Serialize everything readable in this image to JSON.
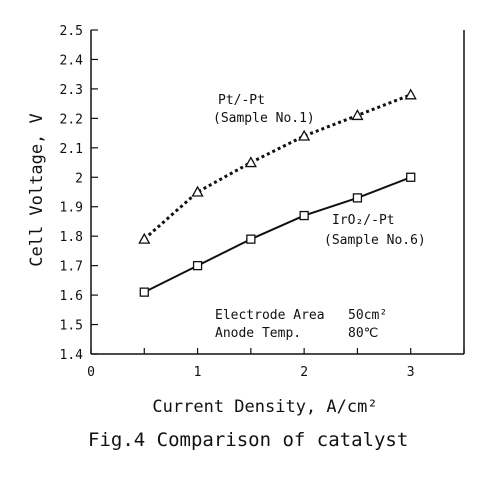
{
  "chart_data": {
    "type": "line",
    "xlabel": "Current Density, A/cm²",
    "ylabel": "Cell Voltage, V",
    "caption": "Fig.4 Comparison of catalyst",
    "xlim": [
      0,
      3.5
    ],
    "ylim": [
      1.4,
      2.5
    ],
    "x_ticks": [
      0,
      1,
      2,
      3
    ],
    "y_ticks": [
      1.4,
      1.5,
      1.6,
      1.7,
      1.8,
      1.9,
      2,
      2.1,
      2.2,
      2.3,
      2.4,
      2.5
    ],
    "series": [
      {
        "name": "Pt/-Pt",
        "label_line1": "Pt/-Pt",
        "label_line2": "(Sample No.1)",
        "marker": "triangle",
        "line_style": "dotted",
        "x": [
          0.5,
          1,
          1.5,
          2,
          2.5,
          3
        ],
        "y": [
          1.79,
          1.95,
          2.05,
          2.14,
          2.21,
          2.28
        ]
      },
      {
        "name": "IrO2/-Pt",
        "label_line1": "IrO₂/-Pt",
        "label_line2": "(Sample No.6)",
        "marker": "square",
        "line_style": "solid",
        "x": [
          0.5,
          1,
          1.5,
          2,
          2.5,
          3
        ],
        "y": [
          1.61,
          1.7,
          1.79,
          1.87,
          1.93,
          2.0
        ]
      }
    ],
    "annotations": [
      "Electrode Area   50cm²",
      "Anode Temp.      80℃"
    ],
    "grid": false,
    "legend": "inline"
  }
}
